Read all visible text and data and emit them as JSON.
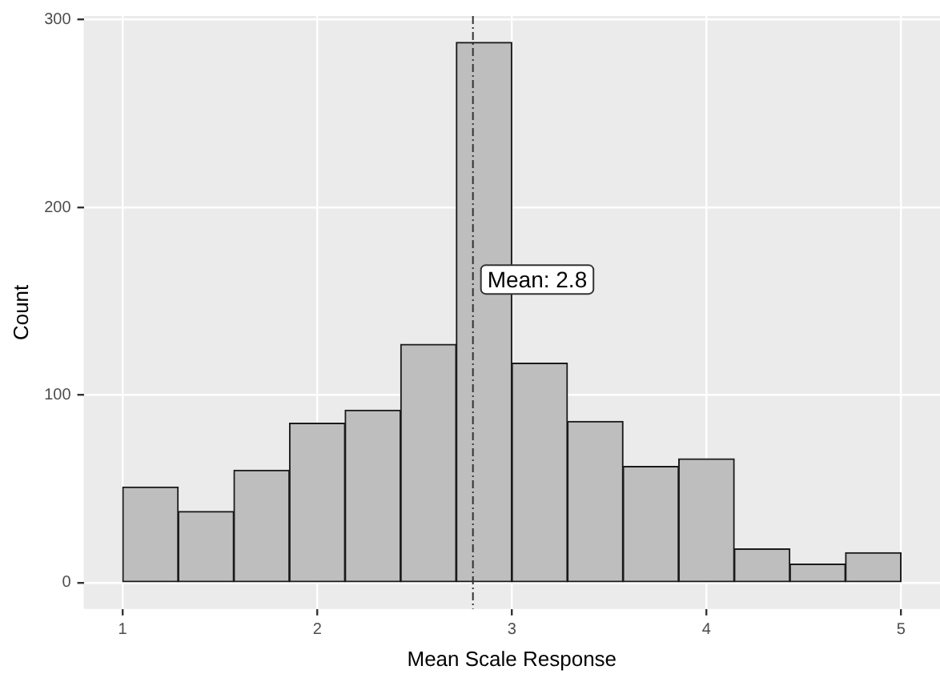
{
  "chart_data": {
    "type": "histogram",
    "xlabel": "Mean Scale Response",
    "ylabel": "Count",
    "bins": [
      1,
      1.2857,
      1.5714,
      1.8571,
      2.1429,
      2.4286,
      2.7143,
      3,
      3.2857,
      3.5714,
      3.8571,
      4.1429,
      4.4286,
      4.7143,
      5
    ],
    "values": [
      51,
      38,
      60,
      85,
      92,
      127,
      288,
      117,
      86,
      62,
      66,
      18,
      10,
      16
    ],
    "color": "#bebebe",
    "xlim": [
      0.8,
      5.2
    ],
    "xticks": [
      1,
      2,
      3,
      4,
      5
    ],
    "ylim": [
      -14,
      302
    ],
    "yticks": [
      0,
      100,
      200,
      300
    ],
    "ref_lines": [
      {
        "axis": "x",
        "value": 2.8,
        "label": "Mean: 2.8",
        "color": "#333333",
        "line_style": "dashed"
      }
    ],
    "grid": true
  }
}
